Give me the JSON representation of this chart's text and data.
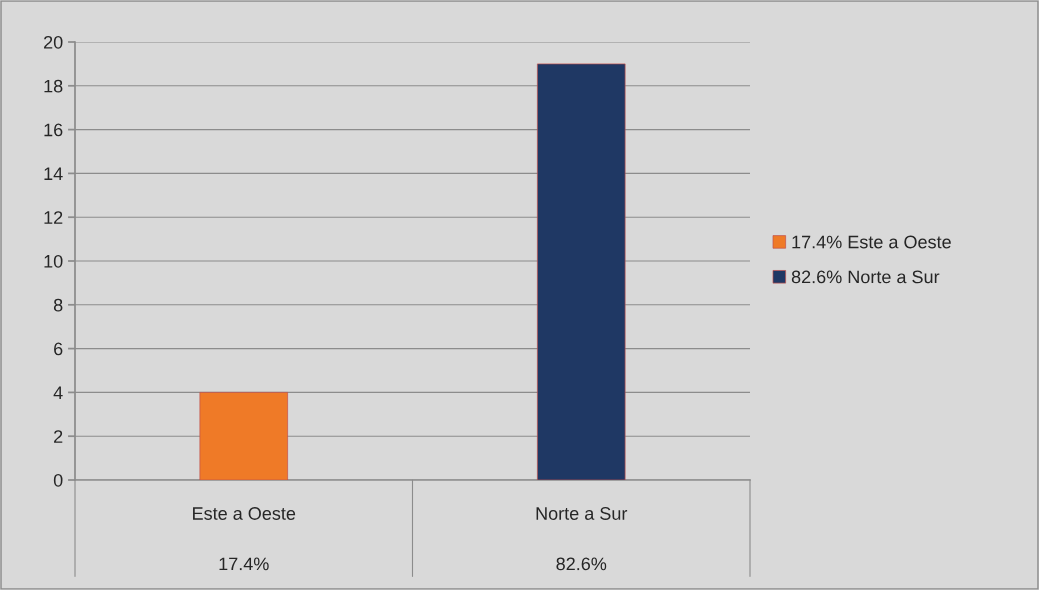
{
  "chart_data": {
    "type": "bar",
    "categories": [
      "Este a Oeste",
      "Norte a Sur"
    ],
    "series": [
      {
        "name": "17.4% Este a Oeste",
        "color": "#ef7a27",
        "values": [
          4,
          null
        ]
      },
      {
        "name": "82.6% Norte a Sur",
        "color": "#1f3864",
        "values": [
          null,
          19
        ]
      }
    ],
    "annotations": [
      "17.4%",
      "82.6%"
    ],
    "ylim": [
      0,
      20
    ],
    "yticks": [
      0,
      2,
      4,
      6,
      8,
      10,
      12,
      14,
      16,
      18,
      20
    ],
    "grid": "y",
    "legend": "right"
  }
}
